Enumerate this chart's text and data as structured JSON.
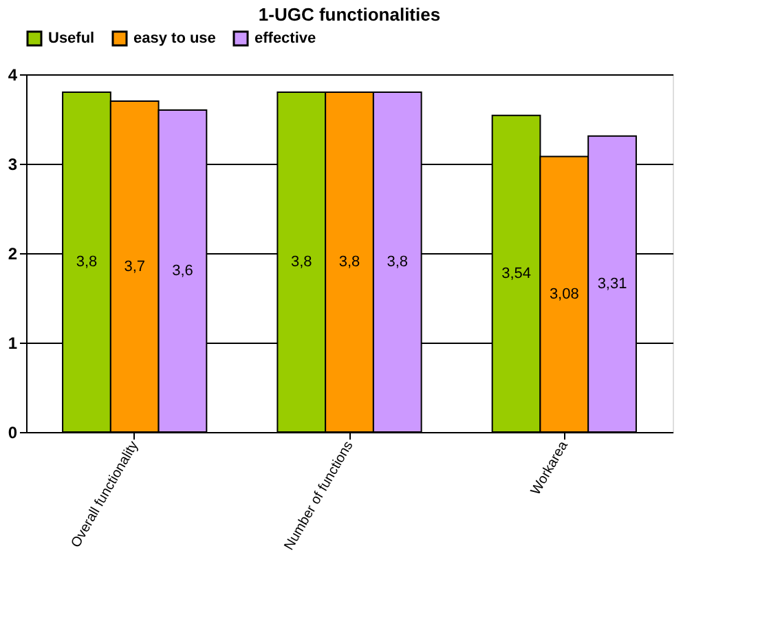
{
  "chart_data": {
    "type": "bar",
    "title": "1-UGC functionalities",
    "categories": [
      "Overall functionality",
      "Number of functions",
      "Workarea"
    ],
    "series": [
      {
        "name": "Useful",
        "color": "#99cc00",
        "values": [
          3.8,
          3.8,
          3.54
        ],
        "value_labels": [
          "3,8",
          "3,8",
          "3,54"
        ]
      },
      {
        "name": "easy to use",
        "color": "#ff9900",
        "values": [
          3.7,
          3.8,
          3.08
        ],
        "value_labels": [
          "3,7",
          "3,8",
          "3,08"
        ]
      },
      {
        "name": "effective",
        "color": "#cc99ff",
        "values": [
          3.6,
          3.8,
          3.31
        ],
        "value_labels": [
          "3,6",
          "3,8",
          "3,31"
        ]
      }
    ],
    "ylim": [
      0,
      4
    ],
    "yticks": [
      0,
      1,
      2,
      3,
      4
    ],
    "grid": "y",
    "legend": "top"
  }
}
